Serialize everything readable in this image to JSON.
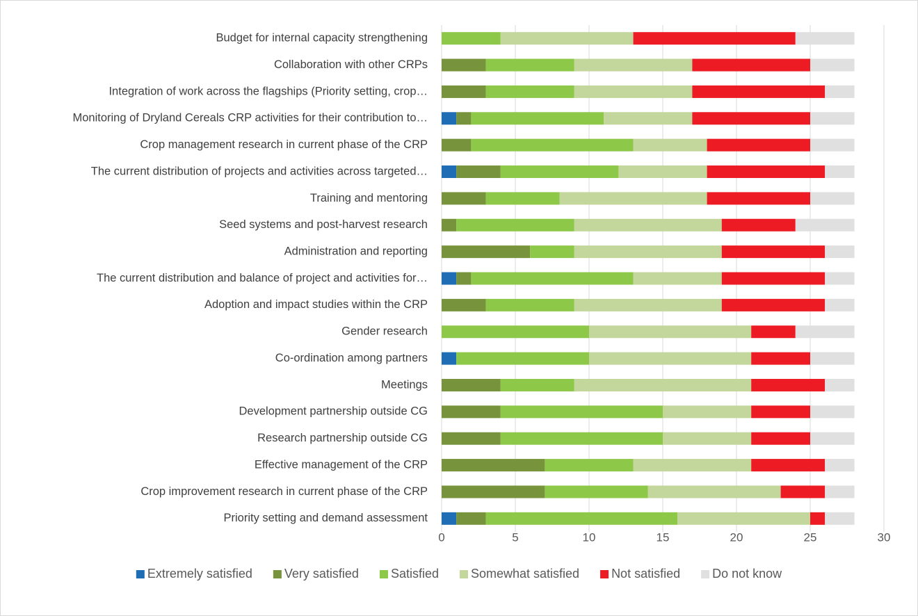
{
  "chart_data": {
    "type": "stacked_barh",
    "categories": [
      "Budget for internal capacity strengthening",
      "Collaboration with other CRPs",
      "Integration of work across the flagships (Priority setting, crop…",
      "Monitoring of Dryland Cereals CRP activities for their contribution to…",
      "Crop management research in current phase of the CRP",
      "The current distribution of projects and activities across targeted…",
      "Training and mentoring",
      "Seed systems and post-harvest research",
      "Administration and reporting",
      "The current distribution and balance of project and activities for…",
      "Adoption and impact studies within the CRP",
      "Gender research",
      "Co-ordination among partners",
      "Meetings",
      "Development partnership outside CG",
      "Research partnership outside CG",
      "Effective management of the CRP",
      "Crop improvement research in current phase of the CRP",
      "Priority setting and demand assessment"
    ],
    "series": [
      {
        "name": "Extremely satisfied",
        "color": "#1f6db5",
        "values": [
          0,
          0,
          0,
          1,
          0,
          1,
          0,
          0,
          0,
          1,
          0,
          0,
          1,
          0,
          0,
          0,
          0,
          0,
          1
        ]
      },
      {
        "name": "Very satisfied",
        "color": "#77933c",
        "values": [
          0,
          3,
          3,
          1,
          2,
          3,
          3,
          1,
          6,
          1,
          3,
          0,
          0,
          4,
          4,
          4,
          7,
          7,
          2
        ]
      },
      {
        "name": "Satisfied",
        "color": "#8dc849",
        "values": [
          4,
          6,
          6,
          9,
          11,
          8,
          5,
          8,
          3,
          11,
          6,
          10,
          9,
          5,
          11,
          11,
          6,
          7,
          13
        ]
      },
      {
        "name": "Somewhat satisfied",
        "color": "#c3d69b",
        "values": [
          9,
          8,
          8,
          6,
          5,
          6,
          10,
          10,
          10,
          6,
          10,
          11,
          11,
          12,
          6,
          6,
          8,
          9,
          9
        ]
      },
      {
        "name": "Not satisfied",
        "color": "#ed1c24",
        "values": [
          11,
          8,
          9,
          8,
          7,
          8,
          7,
          5,
          7,
          7,
          7,
          3,
          4,
          5,
          4,
          4,
          5,
          3,
          1
        ]
      },
      {
        "name": "Do not know",
        "color": "#e0e0e0",
        "values": [
          4,
          3,
          2,
          3,
          3,
          2,
          3,
          4,
          2,
          2,
          2,
          4,
          3,
          2,
          3,
          3,
          2,
          2,
          2
        ]
      }
    ],
    "xlim": [
      0,
      30
    ],
    "xticks": [
      0,
      5,
      10,
      15,
      20,
      25,
      30
    ],
    "grid": true,
    "legend": "bottom"
  }
}
